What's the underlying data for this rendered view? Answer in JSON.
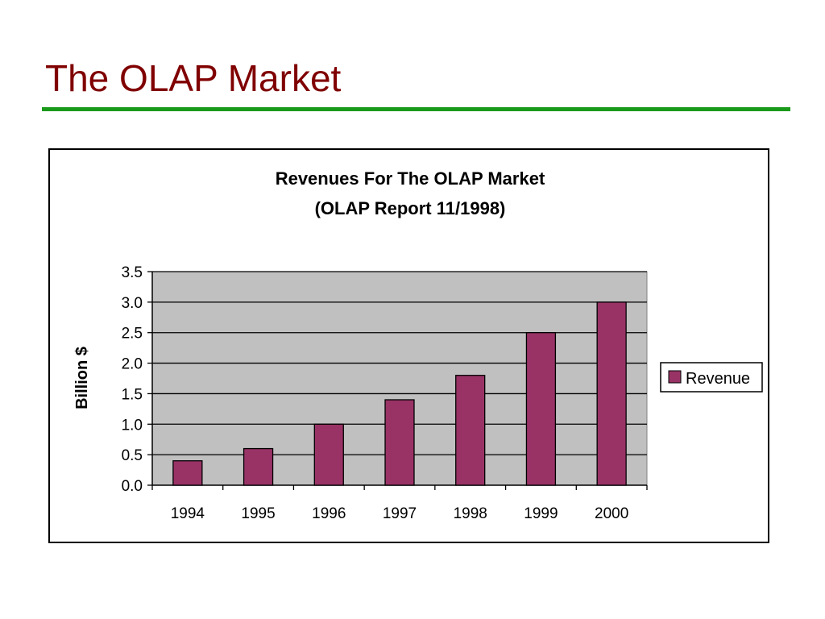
{
  "slide": {
    "title": "The OLAP Market"
  },
  "colors": {
    "title": "#800000",
    "rule": "#1a9a1a",
    "plot_background": "#c0c0c0",
    "bar": "#993366"
  },
  "chart_data": {
    "type": "bar",
    "title": "Revenues For The OLAP Market",
    "subtitle": "(OLAP Report 11/1998)",
    "xlabel": "",
    "ylabel": "Billion $",
    "categories": [
      "1994",
      "1995",
      "1996",
      "1997",
      "1998",
      "1999",
      "2000"
    ],
    "series": [
      {
        "name": "Revenue",
        "values": [
          0.4,
          0.6,
          1.0,
          1.4,
          1.8,
          2.5,
          3.0
        ]
      }
    ],
    "ylim": [
      0,
      3.5
    ],
    "yticks": [
      "0.0",
      "0.5",
      "1.0",
      "1.5",
      "2.0",
      "2.5",
      "3.0",
      "3.5"
    ],
    "grid": true,
    "legend": "right"
  }
}
